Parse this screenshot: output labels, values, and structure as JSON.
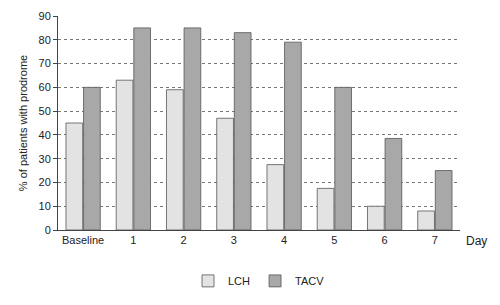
{
  "chart_data": {
    "type": "bar",
    "y_label": "% of patients with prodrome",
    "x_label": "Day",
    "categories": [
      "Baseline",
      "1",
      "2",
      "3",
      "4",
      "5",
      "6",
      "7"
    ],
    "series": [
      {
        "name": "LCH",
        "color": "#e3e3e3",
        "values": [
          45,
          63,
          59,
          47,
          27.5,
          17.5,
          10,
          8
        ]
      },
      {
        "name": "TACV",
        "color": "#a8a8a8",
        "values": [
          60,
          85,
          85,
          83,
          79,
          60,
          38.5,
          25
        ]
      }
    ],
    "ylim": [
      0,
      90
    ],
    "yticks": [
      0,
      10,
      20,
      30,
      40,
      50,
      60,
      70,
      80,
      90
    ],
    "grid": true,
    "legend": "bottom"
  }
}
